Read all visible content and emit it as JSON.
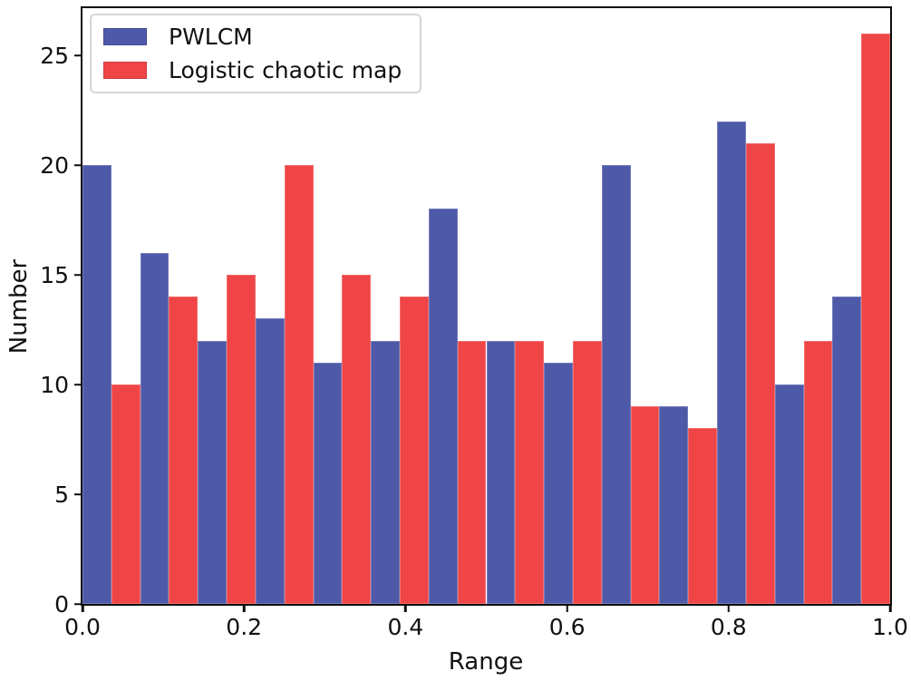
{
  "chart_data": {
    "type": "bar",
    "subtype": "paired-histogram",
    "title": "",
    "xlabel": "Range",
    "ylabel": "Number",
    "xlim": [
      0.0,
      1.0
    ],
    "ylim": [
      0,
      27.15
    ],
    "bins": 14,
    "bin_width": 0.0714,
    "grid": false,
    "legend_position": "upper-left",
    "background_color": "#ffffff",
    "spine_color": "#0d0d0d",
    "xticks": [
      0.0,
      0.2,
      0.4,
      0.6,
      0.8,
      1.0
    ],
    "xtick_labels": [
      "0.0",
      "0.2",
      "0.4",
      "0.6",
      "0.8",
      "1.0"
    ],
    "yticks": [
      0,
      5,
      10,
      15,
      20,
      25
    ],
    "ytick_labels": [
      "0",
      "5",
      "10",
      "15",
      "20",
      "25"
    ],
    "series": [
      {
        "name": "PWLCM",
        "color": "#4e59a8",
        "values": [
          20,
          16,
          12,
          13,
          11,
          12,
          18,
          12,
          11,
          20,
          9,
          22,
          10,
          14
        ]
      },
      {
        "name": "Logistic chaotic map",
        "color": "#ef4546",
        "values": [
          10,
          14,
          15,
          20,
          15,
          14,
          12,
          12,
          12,
          9,
          8,
          21,
          12,
          26
        ]
      }
    ]
  }
}
